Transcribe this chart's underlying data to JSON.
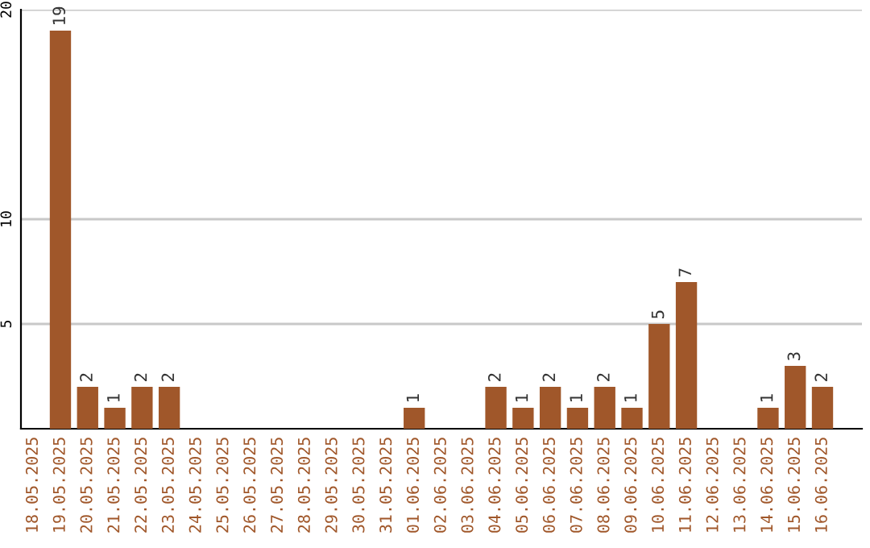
{
  "chart_data": {
    "type": "bar",
    "categories": [
      "18.05.2025",
      "19.05.2025",
      "20.05.2025",
      "21.05.2025",
      "22.05.2025",
      "23.05.2025",
      "24.05.2025",
      "25.05.2025",
      "26.05.2025",
      "27.05.2025",
      "28.05.2025",
      "29.05.2025",
      "30.05.2025",
      "31.05.2025",
      "01.06.2025",
      "02.06.2025",
      "03.06.2025",
      "04.06.2025",
      "05.06.2025",
      "06.06.2025",
      "07.06.2025",
      "08.06.2025",
      "09.06.2025",
      "10.06.2025",
      "11.06.2025",
      "12.06.2025",
      "13.06.2025",
      "14.06.2025",
      "15.06.2025",
      "16.06.2025"
    ],
    "values": [
      0,
      19,
      2,
      1,
      2,
      2,
      0,
      0,
      0,
      0,
      0,
      0,
      0,
      0,
      1,
      0,
      0,
      2,
      1,
      2,
      1,
      2,
      1,
      5,
      7,
      0,
      0,
      1,
      3,
      2
    ],
    "value_labels": [
      null,
      "19",
      "2",
      "1",
      "2",
      "2",
      null,
      null,
      null,
      null,
      null,
      null,
      null,
      null,
      "1",
      null,
      null,
      "2",
      "1",
      "2",
      "1",
      "2",
      "1",
      "5",
      "7",
      null,
      null,
      "1",
      "3",
      "2"
    ],
    "color": "#a0572a",
    "ylim": [
      0,
      20
    ],
    "yticks": [
      5,
      10,
      20
    ],
    "grid": "y"
  }
}
